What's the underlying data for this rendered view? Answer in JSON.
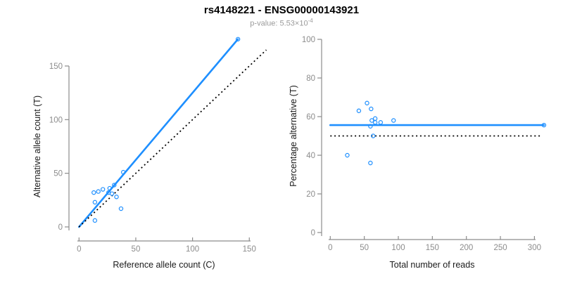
{
  "header": {
    "title": "rs4148221 - ENSG00000143921",
    "subtitle_prefix": "p-value: 5.53×10",
    "subtitle_exponent": "-4"
  },
  "colors": {
    "accent_blue": "#1E8FFF",
    "line_black": "#000000",
    "axis_gray": "#8c8c8c",
    "tick_label_gray": "#8c8c8c",
    "axis_title_color": "#1a1a1a",
    "subtitle_gray": "#9b9b9b"
  },
  "chart_data": [
    {
      "type": "scatter",
      "name": "allele-counts-plot",
      "xlabel": "Reference allele count (C)",
      "ylabel": "Alternative allele count (T)",
      "x_ticks": [
        0,
        50,
        100,
        150
      ],
      "y_ticks": [
        0,
        50,
        100,
        150
      ],
      "xlim": [
        0,
        165
      ],
      "ylim": [
        0,
        178
      ],
      "grid": false,
      "legend": false,
      "points": [
        [
          140,
          175
        ],
        [
          39,
          51
        ],
        [
          31,
          39
        ],
        [
          27,
          36
        ],
        [
          21,
          35
        ],
        [
          17,
          33
        ],
        [
          13,
          32
        ],
        [
          26,
          32
        ],
        [
          29,
          31
        ],
        [
          33,
          28
        ],
        [
          14,
          23
        ],
        [
          37,
          17
        ],
        [
          14,
          6
        ]
      ],
      "lines": [
        {
          "name": "fit-line",
          "style": "solid",
          "color_key": "accent_blue",
          "x1": 0,
          "y1": 0,
          "x2": 140,
          "y2": 175
        },
        {
          "name": "identity-line",
          "style": "dotted",
          "color_key": "line_black",
          "x1": 0,
          "y1": 0,
          "x2": 165,
          "y2": 165
        }
      ]
    },
    {
      "type": "scatter",
      "name": "percentage-vs-reads-plot",
      "xlabel": "Total number of reads",
      "ylabel": "Percentage alternative (T)",
      "x_ticks": [
        0,
        50,
        100,
        150,
        200,
        250,
        300
      ],
      "y_ticks": [
        0,
        20,
        40,
        60,
        80,
        100
      ],
      "xlim": [
        0,
        320
      ],
      "ylim": [
        0,
        100
      ],
      "grid": false,
      "legend": false,
      "points": [
        [
          25,
          40
        ],
        [
          42,
          63
        ],
        [
          54,
          67
        ],
        [
          60,
          64
        ],
        [
          61,
          58
        ],
        [
          66,
          59
        ],
        [
          59,
          55
        ],
        [
          66,
          57
        ],
        [
          74,
          57
        ],
        [
          93,
          58
        ],
        [
          63,
          50
        ],
        [
          59,
          36
        ],
        [
          314,
          55.6
        ]
      ],
      "lines": [
        {
          "name": "mean-percentage-line",
          "style": "solid",
          "color_key": "accent_blue",
          "x1": 0,
          "y1": 55.6,
          "x2": 314,
          "y2": 55.6
        },
        {
          "name": "fifty-percent-line",
          "style": "dotted",
          "color_key": "line_black",
          "x1": 0,
          "y1": 50,
          "x2": 309,
          "y2": 50
        }
      ]
    }
  ]
}
